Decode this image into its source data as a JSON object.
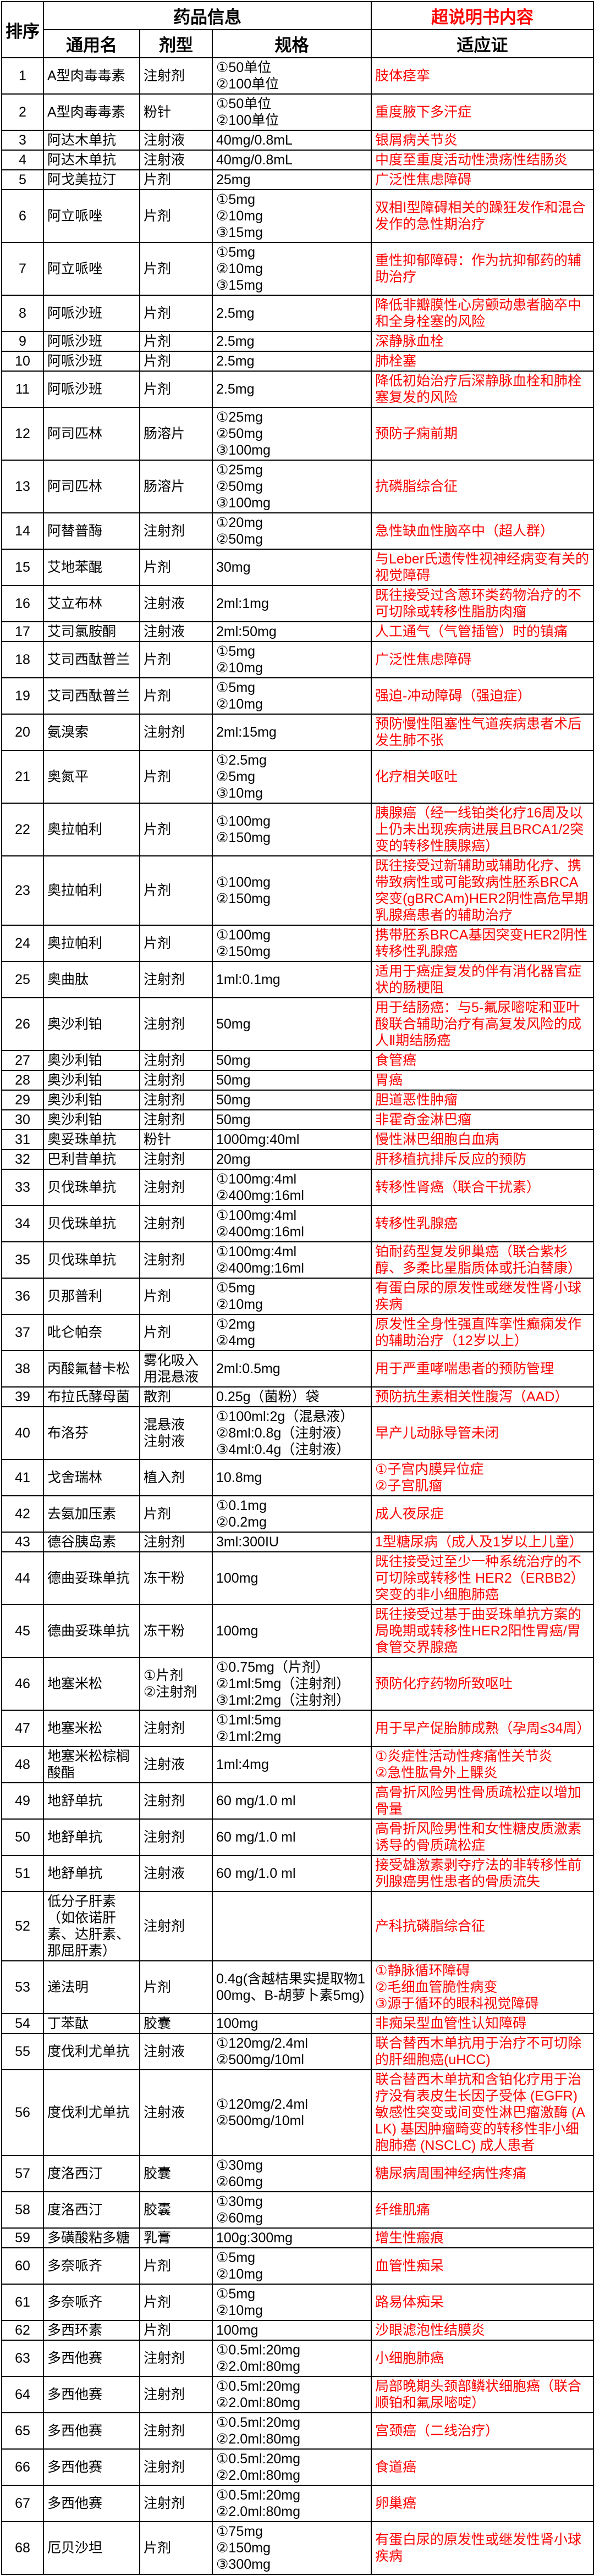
{
  "colors": {
    "indication_text": "#fe0000",
    "offlabel_header_text": "#ff0000",
    "body_text": "#000000",
    "border": "#000000",
    "background": "#ffffff"
  },
  "table": {
    "header": {
      "order": "排序",
      "drug_info": "药品信息",
      "offlabel_content": "超说明书内容",
      "generic_name": "通用名",
      "dosage_form": "剂型",
      "specification": "规格",
      "indication": "适应证"
    },
    "rows": [
      {
        "no": "1",
        "name": "A型肉毒毒素",
        "form": "注射剂",
        "spec": "①50单位\n②100单位",
        "ind": "肢体痉挛"
      },
      {
        "no": "2",
        "name": "A型肉毒毒素",
        "form": "粉针",
        "spec": "①50单位\n②100单位",
        "ind": "重度腋下多汗症"
      },
      {
        "no": "3",
        "name": "阿达木单抗",
        "form": "注射液",
        "spec": "40mg/0.8mL",
        "ind": "银屑病关节炎"
      },
      {
        "no": "4",
        "name": "阿达木单抗",
        "form": "注射液",
        "spec": "40mg/0.8mL",
        "ind": "中度至重度活动性溃疡性结肠炎"
      },
      {
        "no": "5",
        "name": "阿戈美拉汀",
        "form": "片剂",
        "spec": "25mg",
        "ind": "广泛性焦虑障碍"
      },
      {
        "no": "6",
        "name": "阿立哌唑",
        "form": "片剂",
        "spec": "①5mg\n②10mg\n③15mg",
        "ind": "双相Ⅰ型障碍相关的躁狂发作和混合发作的急性期治疗"
      },
      {
        "no": "7",
        "name": "阿立哌唑",
        "form": "片剂",
        "spec": "①5mg\n②10mg\n③15mg",
        "ind": "重性抑郁障碍：作为抗抑郁药的辅助治疗"
      },
      {
        "no": "8",
        "name": "阿哌沙班",
        "form": "片剂",
        "spec": "2.5mg",
        "ind": "降低非瓣膜性心房颤动患者脑卒中和全身栓塞的风险"
      },
      {
        "no": "9",
        "name": "阿哌沙班",
        "form": "片剂",
        "spec": "2.5mg",
        "ind": "深静脉血栓"
      },
      {
        "no": "10",
        "name": "阿哌沙班",
        "form": "片剂",
        "spec": "2.5mg",
        "ind": "肺栓塞"
      },
      {
        "no": "11",
        "name": "阿哌沙班",
        "form": "片剂",
        "spec": "2.5mg",
        "ind": "降低初始治疗后深静脉血栓和肺栓塞复发的风险"
      },
      {
        "no": "12",
        "name": "阿司匹林",
        "form": "肠溶片",
        "spec": "①25mg\n②50mg\n③100mg",
        "ind": "预防子痫前期"
      },
      {
        "no": "13",
        "name": "阿司匹林",
        "form": "肠溶片",
        "spec": "①25mg\n②50mg\n③100mg",
        "ind": "抗磷脂综合征"
      },
      {
        "no": "14",
        "name": "阿替普酶",
        "form": "注射剂",
        "spec": "①20mg\n②50mg",
        "ind": "急性缺血性脑卒中（超人群）"
      },
      {
        "no": "15",
        "name": "艾地苯醌",
        "form": "片剂",
        "spec": "30mg",
        "ind": "与Leber氏遗传性视神经病变有关的视觉障碍"
      },
      {
        "no": "16",
        "name": "艾立布林",
        "form": "注射液",
        "spec": "2ml:1mg",
        "ind": "既往接受过含蒽环类药物治疗的不可切除或转移性脂肪肉瘤"
      },
      {
        "no": "17",
        "name": "艾司氯胺酮",
        "form": "注射液",
        "spec": "2ml:50mg",
        "ind": "人工通气（气管插管）时的镇痛"
      },
      {
        "no": "18",
        "name": "艾司西酞普兰",
        "form": "片剂",
        "spec": "①5mg\n②10mg",
        "ind": "广泛性焦虑障碍"
      },
      {
        "no": "19",
        "name": "艾司西酞普兰",
        "form": "片剂",
        "spec": "①5mg\n②10mg",
        "ind": "强迫-冲动障碍（强迫症）"
      },
      {
        "no": "20",
        "name": "氨溴索",
        "form": "注射剂",
        "spec": "2ml:15mg",
        "ind": "预防慢性阻塞性气道疾病患者术后发生肺不张"
      },
      {
        "no": "21",
        "name": "奥氮平",
        "form": "片剂",
        "spec": "①2.5mg\n②5mg\n③10mg",
        "ind": "化疗相关呕吐"
      },
      {
        "no": "22",
        "name": "奥拉帕利",
        "form": "片剂",
        "spec": "①100mg\n②150mg",
        "ind": "胰腺癌（经一线铂类化疗16周及以上仍未出现疾病进展且BRCA1/2突变的转移性胰腺癌）"
      },
      {
        "no": "23",
        "name": "奥拉帕利",
        "form": "片剂",
        "spec": "①100mg\n②150mg",
        "ind": "既往接受过新辅助或辅助化疗、携带致病性或可能致病性胚系BRCA突变(gBRCAm)HER2阴性高危早期乳腺癌患者的辅助治疗"
      },
      {
        "no": "24",
        "name": "奥拉帕利",
        "form": "片剂",
        "spec": "①100mg\n②150mg",
        "ind": "携带胚系BRCA基因突变HER2阴性转移性乳腺癌"
      },
      {
        "no": "25",
        "name": "奥曲肽",
        "form": "注射剂",
        "spec": "1ml:0.1mg",
        "ind": "适用于癌症复发的伴有消化器官症状的肠梗阻"
      },
      {
        "no": "26",
        "name": "奥沙利铂",
        "form": "注射剂",
        "spec": "50mg",
        "ind": "用于结肠癌：与5-氟尿嘧啶和亚叶酸联合辅助治疗有高复发风险的成人Ⅱ期结肠癌"
      },
      {
        "no": "27",
        "name": "奥沙利铂",
        "form": "注射剂",
        "spec": "50mg",
        "ind": "食管癌"
      },
      {
        "no": "28",
        "name": "奥沙利铂",
        "form": "注射剂",
        "spec": "50mg",
        "ind": "胃癌"
      },
      {
        "no": "29",
        "name": "奥沙利铂",
        "form": "注射剂",
        "spec": "50mg",
        "ind": "胆道恶性肿瘤"
      },
      {
        "no": "30",
        "name": "奥沙利铂",
        "form": "注射剂",
        "spec": "50mg",
        "ind": "非霍奇金淋巴瘤"
      },
      {
        "no": "31",
        "name": "奥妥珠单抗",
        "form": "粉针",
        "spec": "1000mg:40ml",
        "ind": "慢性淋巴细胞白血病"
      },
      {
        "no": "32",
        "name": "巴利昔单抗",
        "form": "注射剂",
        "spec": "20mg",
        "ind": "肝移植抗排斥反应的预防"
      },
      {
        "no": "33",
        "name": "贝伐珠单抗",
        "form": "注射剂",
        "spec": "①100mg:4ml\n②400mg:16ml",
        "ind": "转移性肾癌（联合干扰素）"
      },
      {
        "no": "34",
        "name": "贝伐珠单抗",
        "form": "注射剂",
        "spec": "①100mg:4ml\n②400mg:16ml",
        "ind": "转移性乳腺癌"
      },
      {
        "no": "35",
        "name": "贝伐珠单抗",
        "form": "注射剂",
        "spec": "①100mg:4ml\n②400mg:16ml",
        "ind": "铂耐药型复发卵巢癌（联合紫杉醇、多柔比星脂质体或托泊替康）"
      },
      {
        "no": "36",
        "name": "贝那普利",
        "form": "片剂",
        "spec": "①5mg\n②10mg",
        "ind": "有蛋白尿的原发性或继发性肾小球疾病"
      },
      {
        "no": "37",
        "name": "吡仑帕奈",
        "form": "片剂",
        "spec": "①2mg\n②4mg",
        "ind": "原发性全身性强直阵挛性癫痫发作的辅助治疗（12岁以上）"
      },
      {
        "no": "38",
        "name": "丙酸氟替卡松",
        "form": "雾化吸入用混悬液",
        "spec": "2ml:0.5mg",
        "ind": "用于严重哮喘患者的预防管理"
      },
      {
        "no": "39",
        "name": "布拉氏酵母菌",
        "form": "散剂",
        "spec": "0.25g（菌粉）袋",
        "ind": "预防抗生素相关性腹泻（AAD）"
      },
      {
        "no": "40",
        "name": "布洛芬",
        "form": "混悬液\n注射液",
        "spec": "①100ml:2g（混悬液）\n②8ml:0.8g（注射液）\n③4ml:0.4g（注射液）",
        "ind": "早产儿动脉导管未闭"
      },
      {
        "no": "41",
        "name": "戈舍瑞林",
        "form": "植入剂",
        "spec": "10.8mg",
        "ind": "①子宫内膜异位症\n②子宫肌瘤"
      },
      {
        "no": "42",
        "name": "去氨加压素",
        "form": "片剂",
        "spec": "①0.1mg\n②0.2mg",
        "ind": "成人夜尿症"
      },
      {
        "no": "43",
        "name": "德谷胰岛素",
        "form": "注射剂",
        "spec": "3ml:300IU",
        "ind": "1型糖尿病（成人及1岁以上儿童）"
      },
      {
        "no": "44",
        "name": "德曲妥珠单抗",
        "form": "冻干粉",
        "spec": "100mg",
        "ind": "既往接受过至少一种系统治疗的不可切除或转移性 HER2（ERBB2） 突变的非小细胞肺癌"
      },
      {
        "no": "45",
        "name": "德曲妥珠单抗",
        "form": "冻干粉",
        "spec": "100mg",
        "ind": "既往接受过基于曲妥珠单抗方案的局晚期或转移性HER2阳性胃癌/胃食管交界腺癌"
      },
      {
        "no": "46",
        "name": "地塞米松",
        "form": "①片剂\n②注射剂",
        "spec": "①0.75mg（片剂）\n②1ml:5mg（注射剂）\n③1ml:2mg（注射剂）",
        "ind": "预防化疗药物所致呕吐"
      },
      {
        "no": "47",
        "name": "地塞米松",
        "form": "注射剂",
        "spec": "①1ml:5mg\n②1ml:2mg",
        "ind": "用于早产促胎肺成熟（孕周≤34周）"
      },
      {
        "no": "48",
        "name": "地塞米松棕榈酸酯",
        "form": "注射液",
        "spec": "1ml:4mg",
        "ind": "①炎症性活动性疼痛性关节炎\n②急性肱骨外上髁炎"
      },
      {
        "no": "49",
        "name": "地舒单抗",
        "form": "注射剂",
        "spec": "60 mg/1.0 ml",
        "ind": "高骨折风险男性骨质疏松症以增加骨量"
      },
      {
        "no": "50",
        "name": "地舒单抗",
        "form": "注射剂",
        "spec": "60 mg/1.0 ml",
        "ind": "高骨折风险男性和女性糖皮质激素诱导的骨质疏松症"
      },
      {
        "no": "51",
        "name": "地舒单抗",
        "form": "注射液",
        "spec": "60 mg/1.0 ml",
        "ind": "接受雄激素剥夺疗法的非转移性前列腺癌男性患者的骨质流失"
      },
      {
        "no": "52",
        "name": "低分子肝素（如依诺肝素、达肝素、那屈肝素）",
        "form": "注射剂",
        "spec": "",
        "ind": "产科抗磷脂综合征"
      },
      {
        "no": "53",
        "name": "递法明",
        "form": "片剂",
        "spec": "0.4g(含越桔果实提取物100mg、B-胡萝卜素5mg)",
        "ind": "①静脉循环障碍\n②毛细血管脆性病变\n③源于循环的眼科视觉障碍"
      },
      {
        "no": "54",
        "name": "丁苯酞",
        "form": "胶囊",
        "spec": "100mg",
        "ind": "非痴呆型血管性认知障碍"
      },
      {
        "no": "55",
        "name": "度伐利尤单抗",
        "form": "注射液",
        "spec": "①120mg/2.4ml\n②500mg/10ml",
        "ind": "联合替西木单抗用于治疗不可切除的肝细胞癌(uHCC)"
      },
      {
        "no": "56",
        "name": "度伐利尤单抗",
        "form": "注射液",
        "spec": "①120mg/2.4ml\n②500mg/10ml",
        "ind": "联合替西木单抗和含铂化疗用于治疗没有表皮生长因子受体 (EGFR) 敏感性突变或间变性淋巴瘤激酶 (ALK) 基因肿瘤畸变的转移性非小细胞肺癌 (NSCLC) 成人患者"
      },
      {
        "no": "57",
        "name": "度洛西汀",
        "form": "胶囊",
        "spec": "①30mg\n②60mg",
        "ind": "糖尿病周围神经病性疼痛"
      },
      {
        "no": "58",
        "name": "度洛西汀",
        "form": "胶囊",
        "spec": "①30mg\n②60mg",
        "ind": "纤维肌痛"
      },
      {
        "no": "59",
        "name": "多磺酸粘多糖",
        "form": "乳膏",
        "spec": "100g:300mg",
        "ind": "增生性瘢痕"
      },
      {
        "no": "60",
        "name": "多奈哌齐",
        "form": "片剂",
        "spec": "①5mg\n②10mg",
        "ind": "血管性痴呆"
      },
      {
        "no": "61",
        "name": "多奈哌齐",
        "form": "片剂",
        "spec": "①5mg\n②10mg",
        "ind": "路易体痴呆"
      },
      {
        "no": "62",
        "name": "多西环素",
        "form": "片剂",
        "spec": "100mg",
        "ind": "沙眼滤泡性结膜炎"
      },
      {
        "no": "63",
        "name": "多西他赛",
        "form": "注射剂",
        "spec": "①0.5ml:20mg\n②2.0ml:80mg",
        "ind": "小细胞肺癌"
      },
      {
        "no": "64",
        "name": "多西他赛",
        "form": "注射剂",
        "spec": "①0.5ml:20mg\n②2.0ml:80mg",
        "ind": "局部晚期头颈部鳞状细胞癌（联合顺铂和氟尿嘧啶）"
      },
      {
        "no": "65",
        "name": "多西他赛",
        "form": "注射剂",
        "spec": "①0.5ml:20mg\n②2.0ml:80mg",
        "ind": "宫颈癌（二线治疗）"
      },
      {
        "no": "66",
        "name": "多西他赛",
        "form": "注射剂",
        "spec": "①0.5ml:20mg\n②2.0ml:80mg",
        "ind": "食道癌"
      },
      {
        "no": "67",
        "name": "多西他赛",
        "form": "注射剂",
        "spec": "①0.5ml:20mg\n②2.0ml:80mg",
        "ind": "卵巢癌"
      },
      {
        "no": "68",
        "name": "厄贝沙坦",
        "form": "片剂",
        "spec": "①75mg\n②150mg\n③300mg",
        "ind": "有蛋白尿的原发性或继发性肾小球疾病"
      }
    ]
  }
}
